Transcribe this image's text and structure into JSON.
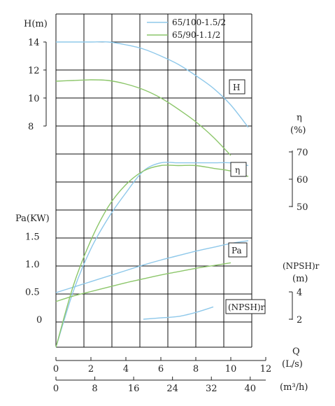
{
  "chart_data": {
    "type": "line",
    "legend": {
      "placement": "top-right",
      "entries": [
        {
          "name": "65/100-1.5/2",
          "color": "#8ec8ea"
        },
        {
          "name": "65/90-1.1/2",
          "color": "#8cc66a"
        }
      ]
    },
    "x_axis": {
      "label_q": "Q",
      "unit_ls": "(L/s)",
      "ticks_ls": [
        "0",
        "2",
        "4",
        "6",
        "8",
        "10",
        "12"
      ],
      "unit_m3h": "(m³/h)",
      "ticks_m3h": [
        "0",
        "8",
        "16",
        "24",
        "32",
        "40"
      ],
      "range_ls": [
        0,
        12
      ]
    },
    "axes": {
      "head": {
        "label": "H(m)",
        "ticks": [
          "14",
          "12",
          "10",
          "8"
        ],
        "range": [
          8,
          14
        ]
      },
      "efficiency": {
        "label_symbol": "η",
        "label_unit": "(%)",
        "ticks": [
          "70",
          "60",
          "50"
        ],
        "range": [
          50,
          70
        ]
      },
      "power": {
        "label": "Pa(KW)",
        "ticks": [
          "1.5",
          "1.0",
          "0.5",
          "0"
        ],
        "range": [
          0,
          1.5
        ]
      },
      "npsh": {
        "label_top": "(NPSH)r",
        "label_unit": "(m)",
        "ticks": [
          "4",
          "2"
        ],
        "range": [
          2,
          4
        ]
      }
    },
    "curve_labels": {
      "head": "H",
      "efficiency": "η",
      "power": "Pa",
      "npsh": "(NPSH)r"
    },
    "grid": true,
    "series": [
      {
        "name": "65/100-1.5/2",
        "color": "#8ec8ea",
        "head": {
          "x": [
            0,
            1,
            2,
            3,
            4,
            5,
            6,
            7,
            8,
            9,
            10,
            11
          ],
          "y": [
            14.0,
            14.0,
            14.0,
            14.0,
            13.8,
            13.5,
            13.0,
            12.4,
            11.6,
            10.7,
            9.5,
            7.9
          ]
        },
        "efficiency": {
          "x": [
            0,
            1,
            2,
            3,
            4,
            5,
            6,
            7,
            8,
            9,
            10,
            11
          ],
          "y": [
            0,
            20,
            35,
            46,
            55,
            63,
            66,
            66,
            66,
            66,
            66,
            65
          ]
        },
        "power": {
          "x": [
            0,
            1,
            2,
            3,
            4,
            5,
            6,
            7,
            8,
            9,
            10,
            11
          ],
          "y": [
            0.48,
            0.58,
            0.68,
            0.78,
            0.88,
            0.98,
            1.07,
            1.15,
            1.23,
            1.3,
            1.37,
            1.42
          ]
        },
        "npsh": {
          "x": [
            5,
            6,
            7,
            8,
            9
          ],
          "y": [
            2.0,
            2.1,
            2.2,
            2.5,
            2.9
          ]
        }
      },
      {
        "name": "65/90-1.1/2",
        "color": "#8cc66a",
        "head": {
          "x": [
            0,
            1,
            2,
            3,
            4,
            5,
            6,
            7,
            8,
            9,
            10
          ],
          "y": [
            11.2,
            11.25,
            11.3,
            11.25,
            11.0,
            10.6,
            10.0,
            9.2,
            8.3,
            7.2,
            5.9
          ]
        },
        "efficiency": {
          "x": [
            0,
            1,
            2,
            3,
            4,
            5,
            6,
            7,
            8,
            9,
            10,
            11
          ],
          "y": [
            0,
            22,
            38,
            50,
            58,
            63,
            65,
            65,
            65,
            64,
            63,
            61
          ]
        },
        "power": {
          "x": [
            0,
            1,
            2,
            3,
            4,
            5,
            6,
            7,
            8,
            9,
            10
          ],
          "y": [
            0.32,
            0.42,
            0.5,
            0.58,
            0.66,
            0.73,
            0.8,
            0.86,
            0.92,
            0.97,
            1.02
          ]
        }
      }
    ]
  }
}
